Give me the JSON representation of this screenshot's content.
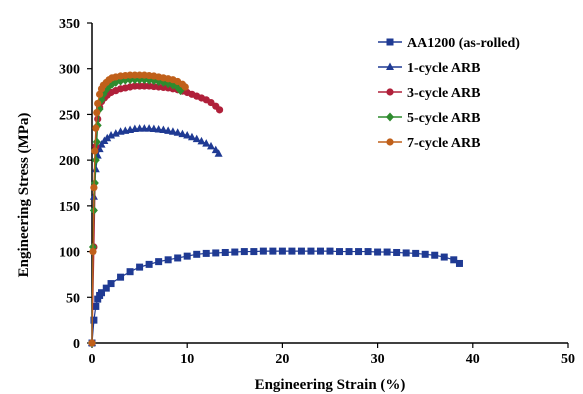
{
  "chart_data": {
    "type": "scatter",
    "xlabel": "Engineering Strain  (%)",
    "ylabel": "Engineering Stress (MPa)",
    "xlim": [
      0,
      50
    ],
    "ylim": [
      0,
      350
    ],
    "xticks": [
      "0",
      "10",
      "20",
      "30",
      "40",
      "50"
    ],
    "yticks": [
      "0",
      "50",
      "100",
      "150",
      "200",
      "250",
      "300",
      "350"
    ],
    "grid": false,
    "legend_position": "top-right",
    "series": [
      {
        "name": "AA1200 (as-rolled)",
        "color": "#1f3a93",
        "marker": "square",
        "x": [
          0,
          0.2,
          0.4,
          0.6,
          0.8,
          1.0,
          1.5,
          2.0,
          3.0,
          4.0,
          5.0,
          6.0,
          7.0,
          8.0,
          9.0,
          10.0,
          11.0,
          12.0,
          13.0,
          14.0,
          15.0,
          16.0,
          17.0,
          18.0,
          19.0,
          20.0,
          21.0,
          22.0,
          23.0,
          24.0,
          25.0,
          26.0,
          27.0,
          28.0,
          29.0,
          30.0,
          31.0,
          32.0,
          33.0,
          34.0,
          35.0,
          36.0,
          37.0,
          38.0,
          38.6
        ],
        "y": [
          0,
          25,
          40,
          48,
          52,
          55,
          60,
          65,
          72,
          78,
          83,
          86,
          89,
          91,
          93,
          95,
          97,
          98,
          98.5,
          99,
          99.5,
          100,
          100,
          100.5,
          100.5,
          100.5,
          100.5,
          100.5,
          100.5,
          100.5,
          100.5,
          100,
          100,
          100,
          100,
          99.5,
          99.5,
          99,
          98.5,
          98,
          97,
          96,
          94,
          91,
          87
        ]
      },
      {
        "name": "1-cycle ARB",
        "color": "#1f3a93",
        "marker": "triangle",
        "x": [
          0,
          0.2,
          0.4,
          0.6,
          0.8,
          1.0,
          1.3,
          1.6,
          2.0,
          2.5,
          3.0,
          3.5,
          4.0,
          4.5,
          5.0,
          5.5,
          6.0,
          6.5,
          7.0,
          7.5,
          8.0,
          8.5,
          9.0,
          9.5,
          10.0,
          10.5,
          11.0,
          11.5,
          12.0,
          12.5,
          13.0,
          13.3
        ],
        "y": [
          0,
          160,
          190,
          205,
          212,
          217,
          221,
          224,
          227,
          229,
          231,
          232,
          233,
          234,
          234.5,
          234.5,
          234.5,
          234,
          233.5,
          233,
          232,
          231,
          230,
          228.5,
          227,
          225,
          223,
          220.5,
          218,
          215,
          211,
          207
        ]
      },
      {
        "name": "3-cycle ARB",
        "color": "#b0203a",
        "marker": "circle",
        "x": [
          0,
          0.2,
          0.4,
          0.6,
          0.8,
          1.0,
          1.3,
          1.6,
          2.0,
          2.5,
          3.0,
          3.5,
          4.0,
          4.5,
          5.0,
          5.5,
          6.0,
          6.5,
          7.0,
          7.5,
          8.0,
          8.5,
          9.0,
          9.5,
          10.0,
          10.5,
          11.0,
          11.5,
          12.0,
          12.5,
          13.0,
          13.4
        ],
        "y": [
          0,
          105,
          215,
          245,
          258,
          264,
          268,
          271,
          274,
          276,
          278,
          279,
          280,
          281,
          281,
          281,
          281,
          280.5,
          280,
          279.5,
          279,
          278,
          277,
          275.5,
          274,
          272,
          270,
          268,
          266,
          263,
          259,
          255
        ]
      },
      {
        "name": "5-cycle ARB",
        "color": "#2e8b2e",
        "marker": "diamond",
        "x": [
          0,
          0.1,
          0.2,
          0.3,
          0.4,
          0.5,
          0.6,
          0.8,
          1.0,
          1.2,
          1.5,
          1.8,
          2.1,
          2.5,
          3.0,
          3.5,
          4.0,
          4.5,
          5.0,
          5.5,
          6.0,
          6.5,
          7.0,
          7.5,
          8.0,
          8.5,
          9.0,
          9.3
        ],
        "y": [
          0,
          105,
          145,
          175,
          200,
          220,
          238,
          256,
          266,
          272,
          277,
          281,
          283,
          285,
          286.5,
          287.5,
          288,
          288,
          288,
          288,
          287.5,
          287,
          286,
          285,
          283.5,
          282,
          279.5,
          276
        ]
      },
      {
        "name": "7-cycle ARB",
        "color": "#c0601a",
        "marker": "circle",
        "x": [
          0,
          0.1,
          0.2,
          0.3,
          0.4,
          0.5,
          0.6,
          0.8,
          1.0,
          1.2,
          1.5,
          1.8,
          2.1,
          2.5,
          3.0,
          3.5,
          4.0,
          4.5,
          5.0,
          5.5,
          6.0,
          6.5,
          7.0,
          7.5,
          8.0,
          8.5,
          9.0,
          9.5,
          9.8
        ],
        "y": [
          0,
          100,
          170,
          210,
          235,
          252,
          262,
          272,
          278,
          282,
          285,
          288,
          290,
          291,
          292,
          292.5,
          293,
          293,
          293,
          293,
          292.5,
          292,
          291,
          290,
          289,
          288,
          286,
          283,
          280
        ]
      }
    ]
  }
}
